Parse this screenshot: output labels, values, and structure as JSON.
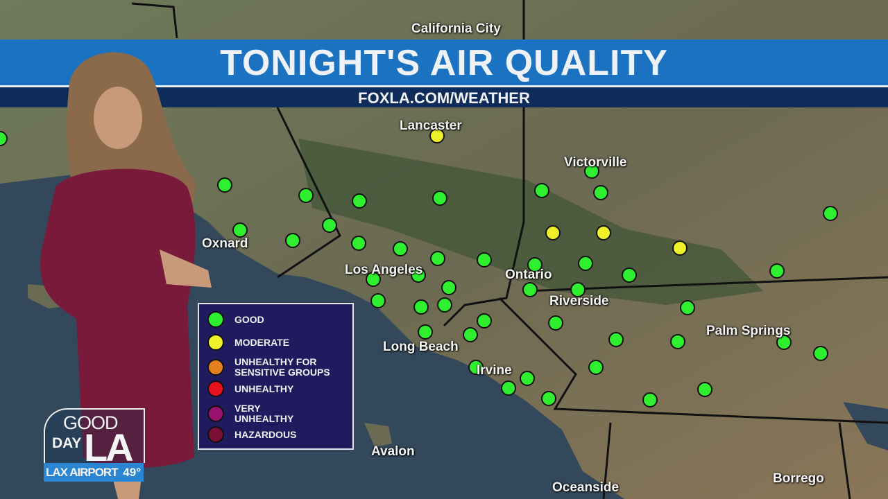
{
  "header": {
    "title": "TONIGHT'S AIR QUALITY",
    "subtitle": "FOXLA.COM/WEATHER"
  },
  "cities": {
    "california_city": "California City",
    "lancaster": "Lancaster",
    "victorville": "Victorville",
    "oxnard": "Oxnard",
    "los_angeles": "Los Angeles",
    "ontario": "Ontario",
    "riverside": "Riverside",
    "palm_springs": "Palm Springs",
    "long_beach": "Long Beach",
    "irvine": "Irvine",
    "avalon": "Avalon",
    "oceanside": "Oceanside",
    "borrego": "Borrego"
  },
  "legend": {
    "items": [
      {
        "label": "GOOD",
        "color": "#2ef02e"
      },
      {
        "label": "MODERATE",
        "color": "#eef02a"
      },
      {
        "label": "UNHEALTHY FOR SENSITIVE GROUPS",
        "color": "#e5801f"
      },
      {
        "label": "UNHEALTHY",
        "color": "#e8101c"
      },
      {
        "label": "VERY UNHEALTHY",
        "color": "#9a1270"
      },
      {
        "label": "HAZARDOUS",
        "color": "#7a1035"
      }
    ]
  },
  "stations": [
    "good",
    "good",
    "good",
    "good",
    "good",
    "good",
    "good",
    "good",
    "good",
    "good",
    "good",
    "good",
    "good",
    "good",
    "good",
    "good",
    "good",
    "good",
    "good",
    "good",
    "good",
    "good",
    "good",
    "good",
    "good",
    "good",
    "good",
    "good",
    "good",
    "good",
    "good",
    "good",
    "good",
    "good",
    "good",
    "good",
    "good",
    "good",
    "good",
    "good",
    "good",
    "good",
    "good",
    "good",
    "moderate",
    "moderate",
    "moderate",
    "moderate"
  ],
  "status_colors": {
    "good": "#2ef02e",
    "moderate": "#eef02a"
  },
  "logo": {
    "text": "GOOD DAY LA",
    "location": "LAX AIRPORT",
    "temperature": "49°"
  }
}
